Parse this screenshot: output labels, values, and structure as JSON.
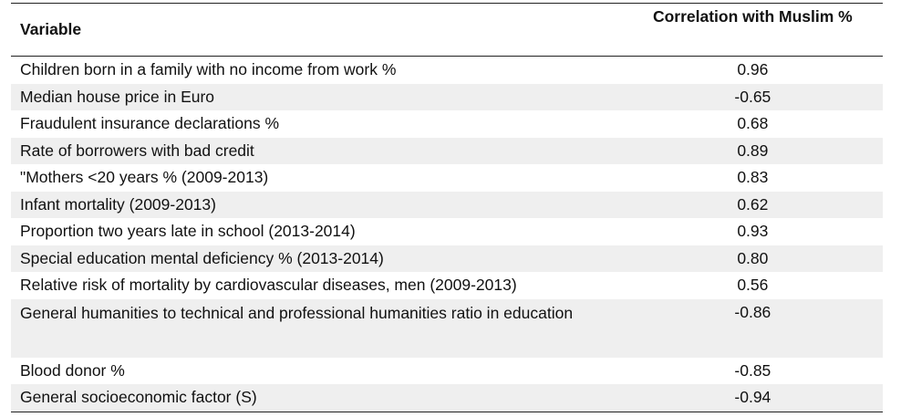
{
  "table": {
    "header": [
      "Variable",
      "Correlation with Muslim %"
    ],
    "rows": [
      [
        "Children born in a family with no income from work %",
        "0.96"
      ],
      [
        "Median house price in Euro",
        "-0.65"
      ],
      [
        "Fraudulent insurance declarations %",
        "0.68"
      ],
      [
        "Rate of borrowers with bad credit",
        "0.89"
      ],
      [
        "\"Mothers <20 years % (2009-2013)",
        "0.83"
      ],
      [
        "Infant mortality (2009-2013)",
        "0.62"
      ],
      [
        "Proportion two years late in school (2013-2014)",
        "0.93"
      ],
      [
        "Special education mental deficiency % (2013-2014)",
        "0.80"
      ],
      [
        "Relative risk of mortality by cardiovascular diseases, men (2009-2013)",
        "0.56"
      ],
      [
        "General humanities to technical and professional humanities ratio in education",
        "-0.86"
      ],
      [
        "Blood donor %",
        "-0.85"
      ],
      [
        "General socioeconomic factor (S)",
        "-0.94"
      ]
    ]
  }
}
